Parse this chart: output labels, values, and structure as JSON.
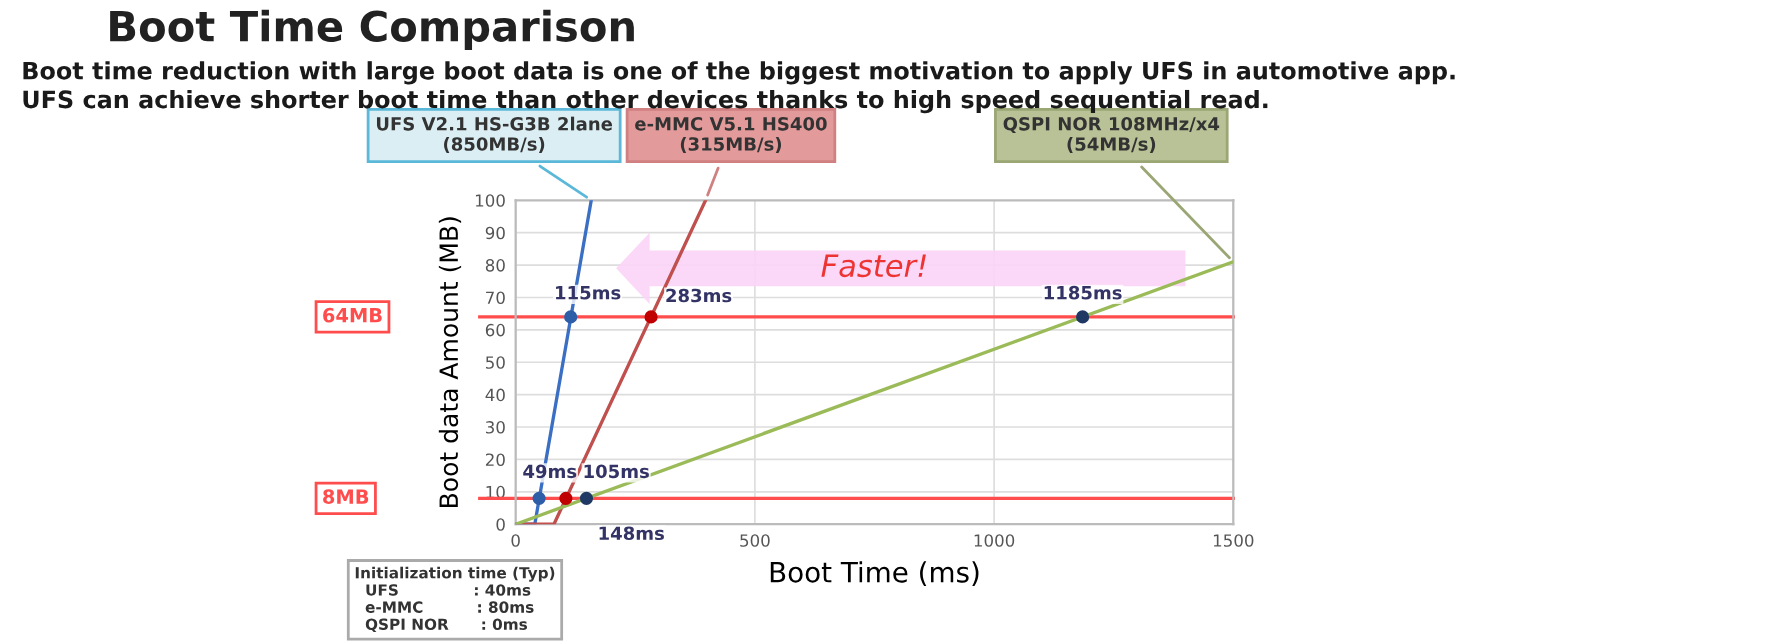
{
  "chart_data": {
    "type": "line",
    "title": "Boot Time Comparison",
    "subtitle": "Boot time reduction with large boot data is one of the biggest motivation to apply UFS in automotive app.\nUFS can achieve shorter boot time than other devices thanks to high speed sequential read.",
    "xlabel": "Boot Time (ms)",
    "ylabel": "Boot data Amount (MB)",
    "xlim": [
      0,
      1500
    ],
    "ylim": [
      0,
      100
    ],
    "xticks": [
      0,
      500,
      1000,
      1500
    ],
    "yticks": [
      0,
      10,
      20,
      30,
      40,
      50,
      60,
      70,
      80,
      90,
      100
    ],
    "grid": true,
    "marker": "none",
    "line_style": "solid",
    "series": [
      {
        "name": "UFS V2.1 HS-G3B 2lane\n(850MB/s)",
        "color": "#3a6fc4",
        "x": [
          0,
          40,
          158
        ],
        "values": [
          0,
          0,
          100
        ]
      },
      {
        "name": "e-MMC V5.1 HS400\n(315MB/s)",
        "color": "#c0504d",
        "x": [
          0,
          80,
          397
        ],
        "values": [
          0,
          0,
          100
        ]
      },
      {
        "name": "QSPI NOR 108MHz/x4\n(54MB/s)",
        "color": "#9bbb59",
        "x": [
          0,
          1500
        ],
        "values": [
          0,
          81
        ]
      },
      {
        "type": "scatter",
        "marker": "circle",
        "color": "#2f5ea8",
        "x": [
          49,
          115
        ],
        "values": [
          8,
          64
        ]
      },
      {
        "type": "scatter",
        "marker": "circle",
        "color": "#c00000",
        "x": [
          105,
          283
        ],
        "values": [
          8,
          64
        ]
      },
      {
        "type": "scatter",
        "marker": "circle",
        "color": "#1f3864",
        "x": [
          148,
          1185
        ],
        "values": [
          8,
          64
        ]
      }
    ],
    "ref_lines": [
      {
        "axis": "y",
        "value": 64,
        "label": "64MB",
        "color": "#ff4d4d"
      },
      {
        "axis": "y",
        "value": 8,
        "label": "8MB",
        "color": "#ff4d4d"
      }
    ],
    "annotations": [
      {
        "text": "49ms",
        "x": 49,
        "y": 8
      },
      {
        "text": "105ms",
        "x": 105,
        "y": 8
      },
      {
        "text": "148ms",
        "x": 148,
        "y": 8
      },
      {
        "text": "115ms",
        "x": 115,
        "y": 64
      },
      {
        "text": "283ms",
        "x": 283,
        "y": 64
      },
      {
        "text": "1185ms",
        "x": 1185,
        "y": 64
      },
      "Faster!",
      "Initialization time (Typ)\n  UFS              : 40ms\n  e-MMC          : 80ms\n  QSPI NOR      : 0ms"
    ]
  }
}
